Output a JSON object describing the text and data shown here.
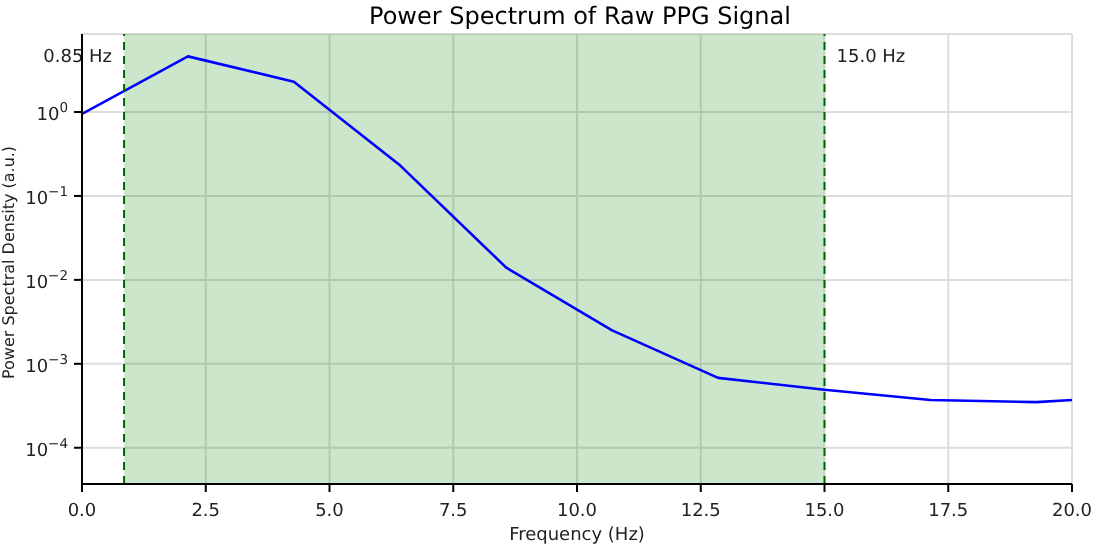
{
  "chart_data": {
    "type": "line",
    "title": "Power Spectrum of Raw PPG Signal",
    "xlabel": "Frequency (Hz)",
    "ylabel": "Power Spectral Density (a.u.)",
    "x": [
      0,
      2.14,
      4.28,
      6.43,
      8.57,
      10.71,
      12.85,
      15.0,
      17.14,
      19.28,
      20
    ],
    "series": [
      {
        "color": "#0000ff",
        "values": [
          0.95,
          4.6,
          2.3,
          0.23,
          0.014,
          0.0025,
          0.00068,
          0.00049,
          0.00037,
          0.00035,
          0.00037
        ]
      }
    ],
    "log": "y",
    "xlim": [
      0,
      20
    ],
    "xticks": [
      {
        "value": 0,
        "label": "0.0"
      },
      {
        "value": 2.5,
        "label": "2.5"
      },
      {
        "value": 5,
        "label": "5.0"
      },
      {
        "value": 7.5,
        "label": "7.5"
      },
      {
        "value": 10,
        "label": "10.0"
      },
      {
        "value": 12.5,
        "label": "12.5"
      },
      {
        "value": 15,
        "label": "15.0"
      },
      {
        "value": 17.5,
        "label": "17.5"
      },
      {
        "value": 20,
        "label": "20.0"
      }
    ],
    "ylim": [
      3.7e-05,
      8.5
    ],
    "yticks": [
      {
        "value": 0.0001,
        "label": "10$^{−4}$"
      },
      {
        "value": 0.001,
        "label": "10$^{−3}$"
      },
      {
        "value": 0.01,
        "label": "10$^{−2}$"
      },
      {
        "value": 0.1,
        "label": "10$^{−1}$"
      },
      {
        "value": 1,
        "label": "10$^{0}$"
      }
    ],
    "bands": [
      {
        "axis": "x",
        "from": 0.85,
        "to": 15,
        "color": "#008000"
      }
    ],
    "ref_lines": [
      {
        "axis": "x",
        "value": 0.85,
        "label": "0.85 Hz",
        "color": "#006400",
        "line_style": "dashed"
      },
      {
        "axis": "x",
        "value": 15,
        "label": "15.0 Hz",
        "color": "#006400",
        "line_style": "dashed"
      }
    ],
    "grid": true,
    "line_style": "solid",
    "marker": "none"
  }
}
